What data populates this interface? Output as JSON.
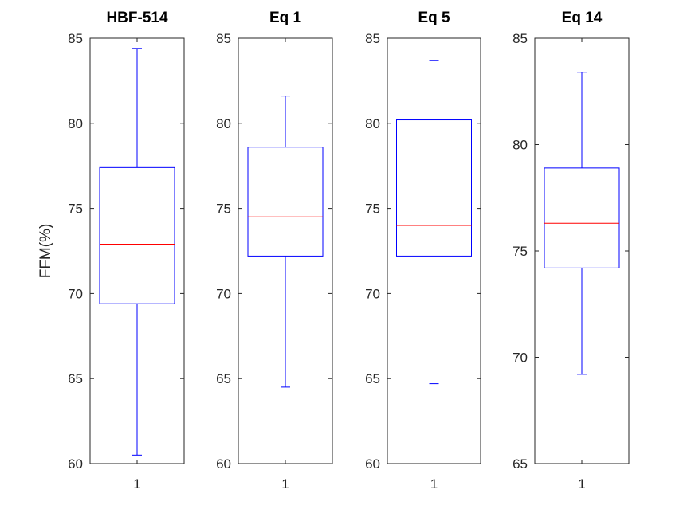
{
  "chart_data": [
    {
      "type": "box",
      "title": "HBF-514",
      "ylabel": "FFM(%)",
      "categories": [
        "1"
      ],
      "ylim": [
        60,
        85
      ],
      "yticks": [
        60,
        65,
        70,
        75,
        80,
        85
      ],
      "box": {
        "min": 60.5,
        "q1": 69.4,
        "median": 72.9,
        "q3": 77.4,
        "max": 84.4
      }
    },
    {
      "type": "box",
      "title": "Eq 1",
      "ylabel": "",
      "categories": [
        "1"
      ],
      "ylim": [
        60,
        85
      ],
      "yticks": [
        60,
        65,
        70,
        75,
        80,
        85
      ],
      "box": {
        "min": 64.5,
        "q1": 72.2,
        "median": 74.5,
        "q3": 78.6,
        "max": 81.6
      }
    },
    {
      "type": "box",
      "title": "Eq 5",
      "ylabel": "",
      "categories": [
        "1"
      ],
      "ylim": [
        60,
        85
      ],
      "yticks": [
        60,
        65,
        70,
        75,
        80,
        85
      ],
      "box": {
        "min": 64.7,
        "q1": 72.2,
        "median": 74.0,
        "q3": 80.2,
        "max": 83.7
      }
    },
    {
      "type": "box",
      "title": "Eq 14",
      "ylabel": "",
      "categories": [
        "1"
      ],
      "ylim": [
        65,
        85
      ],
      "yticks": [
        65,
        70,
        75,
        80,
        85
      ],
      "box": {
        "min": 69.2,
        "q1": 74.2,
        "median": 76.3,
        "q3": 78.9,
        "max": 83.4
      }
    }
  ],
  "colors": {
    "box": "#0000ff",
    "median": "#ff0000",
    "axes": "#262626"
  }
}
